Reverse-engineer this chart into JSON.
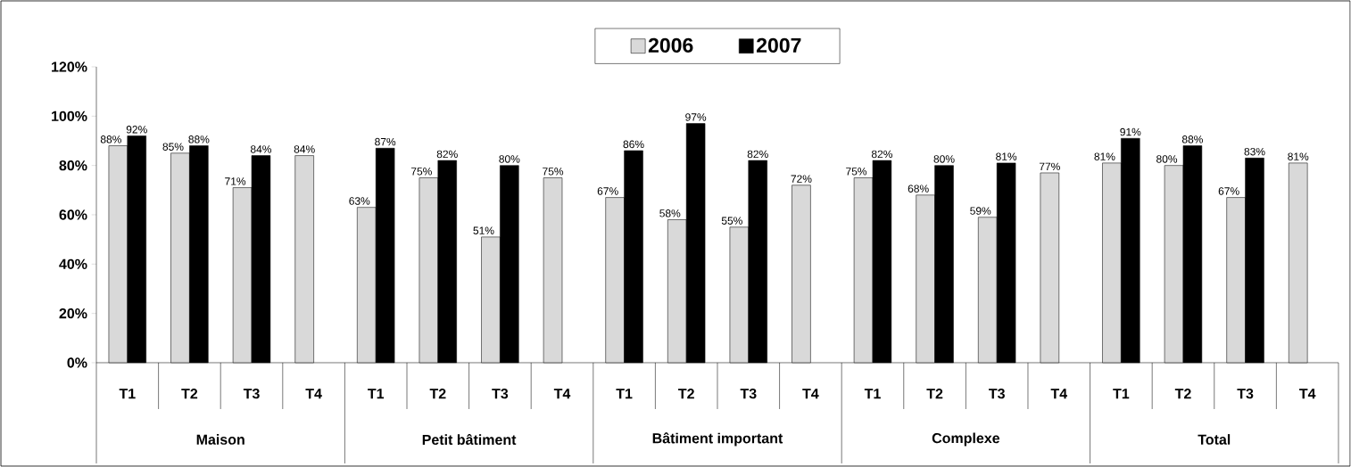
{
  "chart_data": {
    "type": "bar",
    "categories": [
      "T1",
      "T2",
      "T3",
      "T4",
      "T1",
      "T2",
      "T3",
      "T4",
      "T1",
      "T2",
      "T3",
      "T4",
      "T1",
      "T2",
      "T3",
      "T4",
      "T1",
      "T2",
      "T3",
      "T4"
    ],
    "series": [
      {
        "name": "2006",
        "color": "#d9d9d9",
        "values": [
          88,
          85,
          71,
          84,
          63,
          75,
          51,
          75,
          67,
          58,
          55,
          72,
          75,
          68,
          59,
          77,
          81,
          80,
          67,
          81
        ],
        "value_labels": [
          "88%",
          "85%",
          "71%",
          "84%",
          "63%",
          "75%",
          "51%",
          "75%",
          "67%",
          "58%",
          "55%",
          "72%",
          "75%",
          "68%",
          "59%",
          "77%",
          "81%",
          "80%",
          "67%",
          "81%"
        ]
      },
      {
        "name": "2007",
        "color": "#000000",
        "values": [
          92,
          88,
          84,
          null,
          87,
          82,
          80,
          null,
          86,
          97,
          82,
          null,
          82,
          80,
          81,
          null,
          91,
          88,
          83,
          null
        ],
        "value_labels": [
          "92%",
          "88%",
          "84%",
          null,
          "87%",
          "82%",
          "80%",
          null,
          "86%",
          "97%",
          "82%",
          null,
          "82%",
          "80%",
          "81%",
          null,
          "91%",
          "88%",
          "83%",
          null
        ]
      }
    ],
    "annotations": [
      "Maison",
      "Petit bâtiment",
      "Bâtiment important",
      "Complexe",
      "Total"
    ],
    "ylim": [
      0,
      120
    ],
    "yticks": [
      {
        "value": 0,
        "label": "0%"
      },
      {
        "value": 20,
        "label": "20%"
      },
      {
        "value": 40,
        "label": "40%"
      },
      {
        "value": 60,
        "label": "60%"
      },
      {
        "value": 80,
        "label": "80%"
      },
      {
        "value": 100,
        "label": "100%"
      },
      {
        "value": 120,
        "label": "120%"
      }
    ],
    "legend": "top",
    "grid": false
  }
}
